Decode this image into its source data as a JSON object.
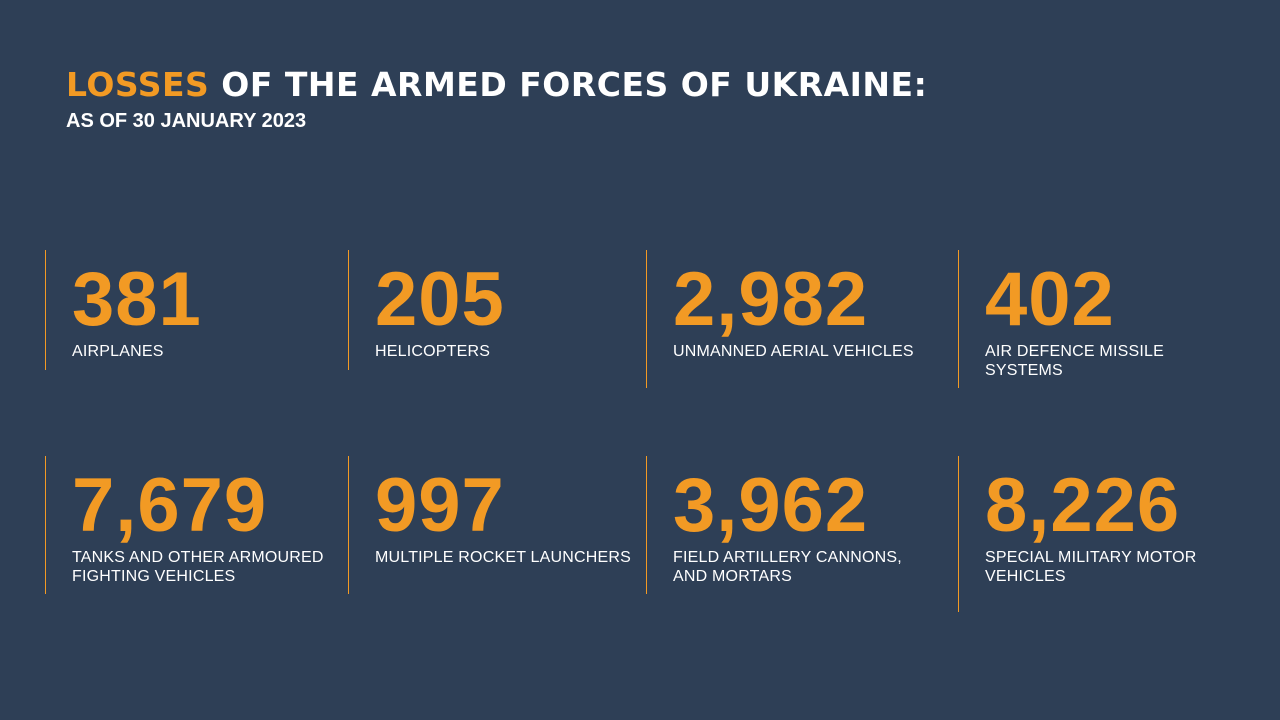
{
  "header": {
    "title_accent": "LOSSES",
    "title_rest": " OF THE ARMED FORCES OF UKRAINE:",
    "subtitle": "AS OF 30 JANUARY 2023"
  },
  "accent_color": "#f29a24",
  "background_color": "#2e3f56",
  "stats": [
    {
      "value": "381",
      "label": "AIRPLANES"
    },
    {
      "value": "205",
      "label": "HELICOPTERS"
    },
    {
      "value": "2,982",
      "label": "UNMANNED AERIAL VEHICLES"
    },
    {
      "value": "402",
      "label": "AIR DEFENCE MISSILE SYSTEMS"
    },
    {
      "value": "7,679",
      "label": "TANKS AND OTHER ARMOURED FIGHTING VEHICLES"
    },
    {
      "value": "997",
      "label": "MULTIPLE ROCKET LAUNCHERS"
    },
    {
      "value": "3,962",
      "label": "FIELD ARTILLERY CANNONS, AND MORTARS"
    },
    {
      "value": "8,226",
      "label": "SPECIAL MILITARY MOTOR VEHICLES"
    }
  ]
}
